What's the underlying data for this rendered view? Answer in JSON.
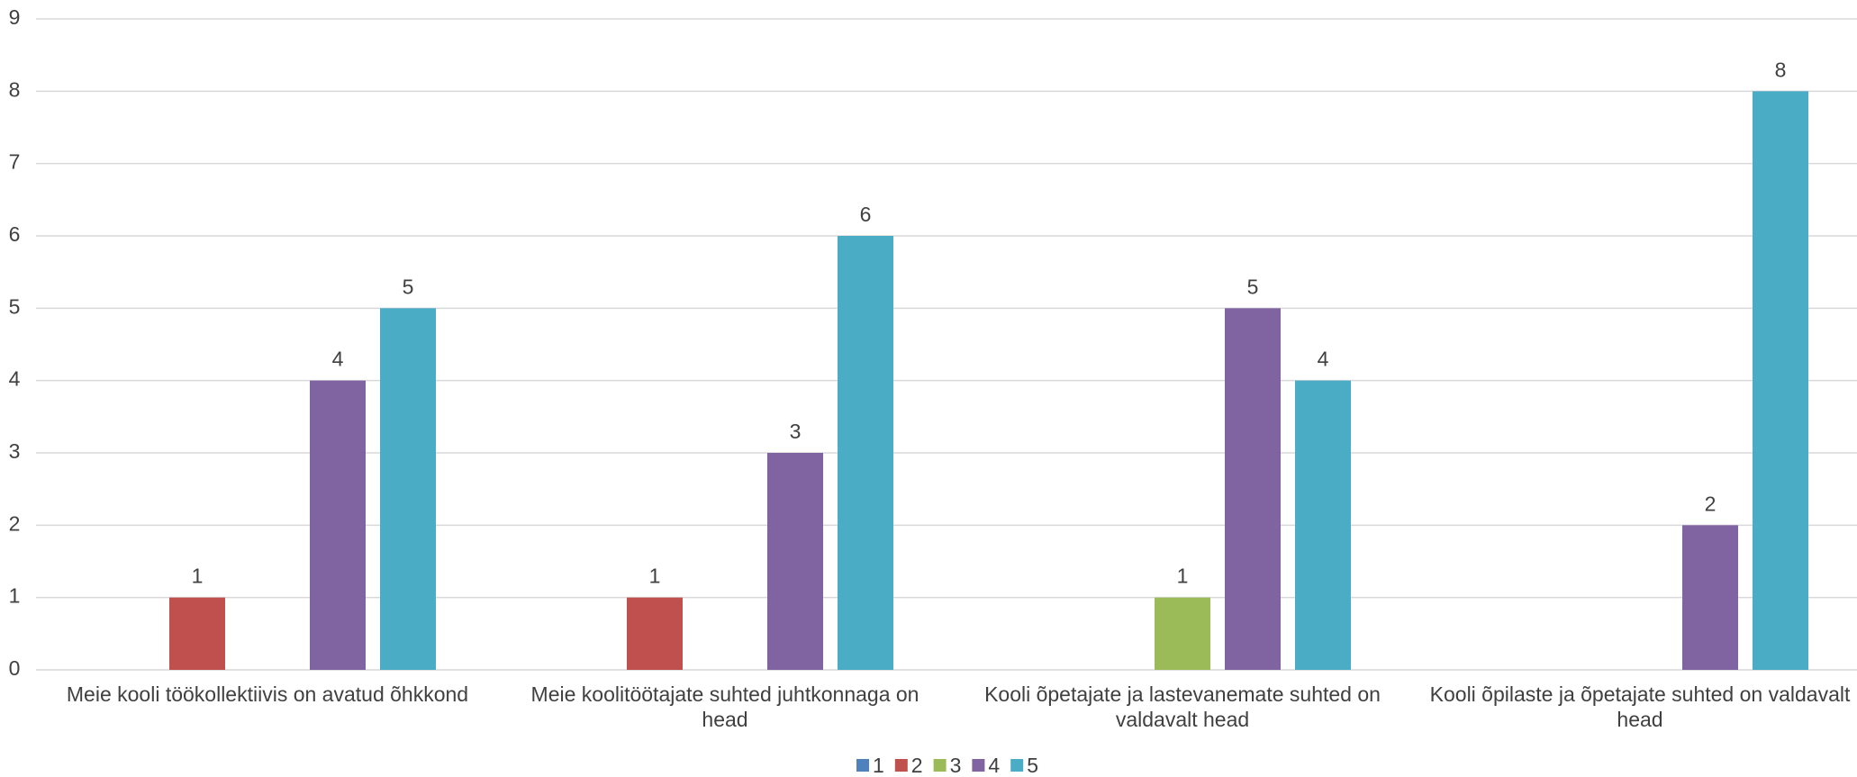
{
  "chart_data": {
    "type": "bar",
    "categories": [
      "Meie kooli töökollektiivis on avatud õhkkond",
      "Meie koolitöötajate suhted juhtkonnaga on head",
      "Kooli õpetajate ja lastevanemate suhted on valdavalt head",
      "Kooli õpilaste ja õpetajate suhted on valdavalt head"
    ],
    "series": [
      {
        "name": "1",
        "color": "#4f81bd",
        "values": [
          null,
          null,
          null,
          null
        ]
      },
      {
        "name": "2",
        "color": "#c0504d",
        "values": [
          1,
          1,
          null,
          null
        ]
      },
      {
        "name": "3",
        "color": "#9bbb59",
        "values": [
          null,
          null,
          1,
          null
        ]
      },
      {
        "name": "4",
        "color": "#8064a2",
        "values": [
          4,
          3,
          5,
          2
        ]
      },
      {
        "name": "5",
        "color": "#4bacc6",
        "values": [
          5,
          6,
          4,
          8
        ]
      }
    ],
    "ylim": [
      0,
      9
    ],
    "yticks": [
      0,
      1,
      2,
      3,
      4,
      5,
      6,
      7,
      8,
      9
    ],
    "grid": true,
    "legend": "bottom"
  }
}
